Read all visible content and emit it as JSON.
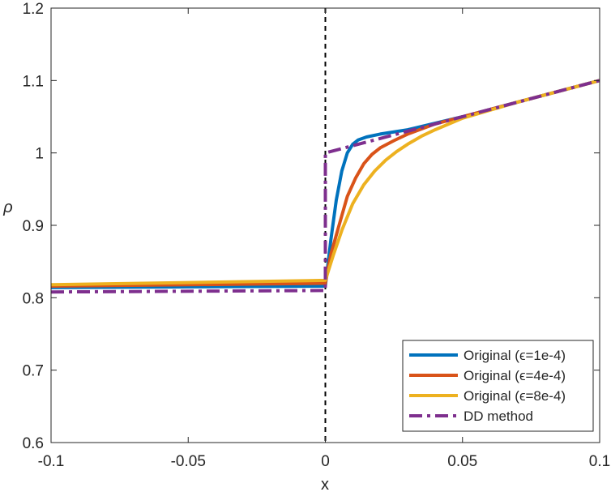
{
  "chart_data": {
    "type": "line",
    "title": "",
    "xlabel": "x",
    "ylabel": "ρ",
    "xlim": [
      -0.1,
      0.1
    ],
    "ylim": [
      0.6,
      1.2
    ],
    "xticks": [
      -0.1,
      -0.05,
      0,
      0.05,
      0.1
    ],
    "xtick_labels": [
      "-0.1",
      "-0.05",
      "0",
      "0.05",
      "0.1"
    ],
    "yticks": [
      0.6,
      0.7,
      0.8,
      0.9,
      1.0,
      1.1,
      1.2
    ],
    "ytick_labels": [
      "0.6",
      "0.7",
      "0.8",
      "0.9",
      "1",
      "1.1",
      "1.2"
    ],
    "grid": false,
    "legend_position": "bottom-right",
    "vertical_reference_line": {
      "x": 0,
      "style": "dashed",
      "color": "#000000"
    },
    "series": [
      {
        "name": "Original (ϵ=1e-4)",
        "color": "#0072BD",
        "style": "solid",
        "x": [
          -0.1,
          -0.05,
          0,
          0.002,
          0.004,
          0.006,
          0.008,
          0.01,
          0.012,
          0.015,
          0.02,
          0.03,
          0.05,
          0.07,
          0.1
        ],
        "y": [
          0.814,
          0.815,
          0.816,
          0.88,
          0.935,
          0.975,
          1.0,
          1.012,
          1.018,
          1.022,
          1.026,
          1.032,
          1.05,
          1.07,
          1.1
        ]
      },
      {
        "name": "Original (ϵ=4e-4)",
        "color": "#D95319",
        "style": "solid",
        "x": [
          -0.1,
          -0.05,
          0,
          0.002,
          0.005,
          0.008,
          0.011,
          0.014,
          0.017,
          0.02,
          0.025,
          0.03,
          0.04,
          0.05,
          0.07,
          0.1
        ],
        "y": [
          0.816,
          0.818,
          0.82,
          0.86,
          0.9,
          0.94,
          0.965,
          0.985,
          0.998,
          1.007,
          1.017,
          1.026,
          1.04,
          1.05,
          1.07,
          1.1
        ]
      },
      {
        "name": "Original (ϵ=8e-4)",
        "color": "#EDB120",
        "style": "solid",
        "x": [
          -0.1,
          -0.05,
          0,
          0.003,
          0.006,
          0.01,
          0.014,
          0.018,
          0.022,
          0.026,
          0.03,
          0.035,
          0.04,
          0.05,
          0.07,
          0.1
        ],
        "y": [
          0.818,
          0.821,
          0.824,
          0.86,
          0.893,
          0.93,
          0.956,
          0.975,
          0.99,
          1.002,
          1.012,
          1.023,
          1.032,
          1.048,
          1.07,
          1.1
        ]
      },
      {
        "name": "DD method",
        "color": "#7E2F8E",
        "style": "dashdot",
        "x": [
          -0.1,
          0,
          0,
          0.1
        ],
        "y": [
          0.808,
          0.81,
          1.0,
          1.1
        ]
      }
    ]
  }
}
